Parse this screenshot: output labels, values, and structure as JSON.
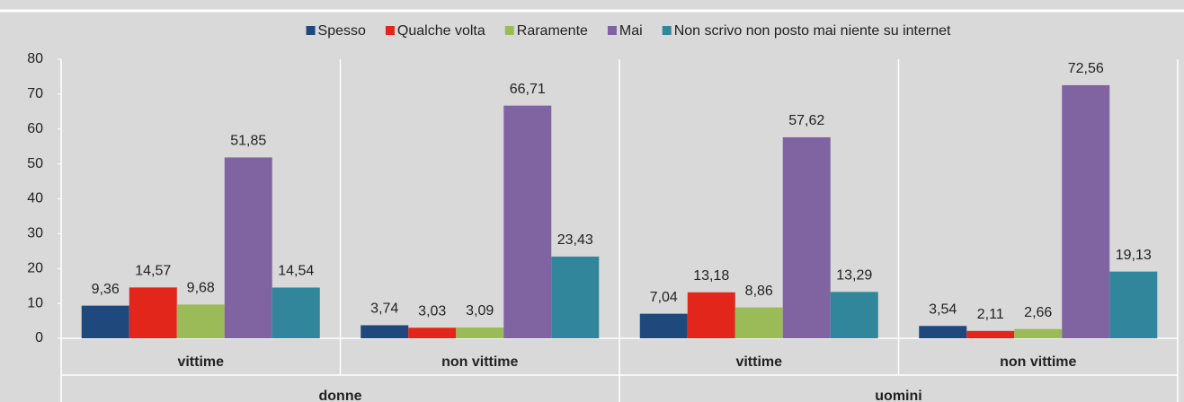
{
  "chart_data": {
    "type": "bar",
    "categories": [
      "vittime",
      "non vittime",
      "vittime",
      "non vittime"
    ],
    "super_categories": [
      "donne",
      "uomini"
    ],
    "series": [
      {
        "name": "Spesso",
        "color": "#1f497d",
        "values": [
          9.36,
          3.74,
          7.04,
          3.54
        ],
        "value_labels": [
          "9,36",
          "3,74",
          "7,04",
          "3,54"
        ]
      },
      {
        "name": "Qualche volta",
        "color": "#e3261c",
        "values": [
          14.57,
          3.03,
          13.18,
          2.11
        ],
        "value_labels": [
          "14,57",
          "3,03",
          "13,18",
          "2,11"
        ]
      },
      {
        "name": "Raramente",
        "color": "#9bbb59",
        "values": [
          9.68,
          3.09,
          8.86,
          2.66
        ],
        "value_labels": [
          "9,68",
          "3,09",
          "8,86",
          "2,66"
        ]
      },
      {
        "name": "Mai",
        "color": "#8064a2",
        "values": [
          51.85,
          66.71,
          57.62,
          72.56
        ],
        "value_labels": [
          "51,85",
          "66,71",
          "57,62",
          "72,56"
        ]
      },
      {
        "name": "Non scrivo non posto mai niente su internet",
        "color": "#31869b",
        "values": [
          14.54,
          23.43,
          13.29,
          19.13
        ],
        "value_labels": [
          "14,54",
          "23,43",
          "13,29",
          "19,13"
        ]
      }
    ],
    "ylim": [
      0,
      80
    ],
    "yticks": [
      0,
      10,
      20,
      30,
      40,
      50,
      60,
      70,
      80
    ],
    "legend": "top"
  }
}
